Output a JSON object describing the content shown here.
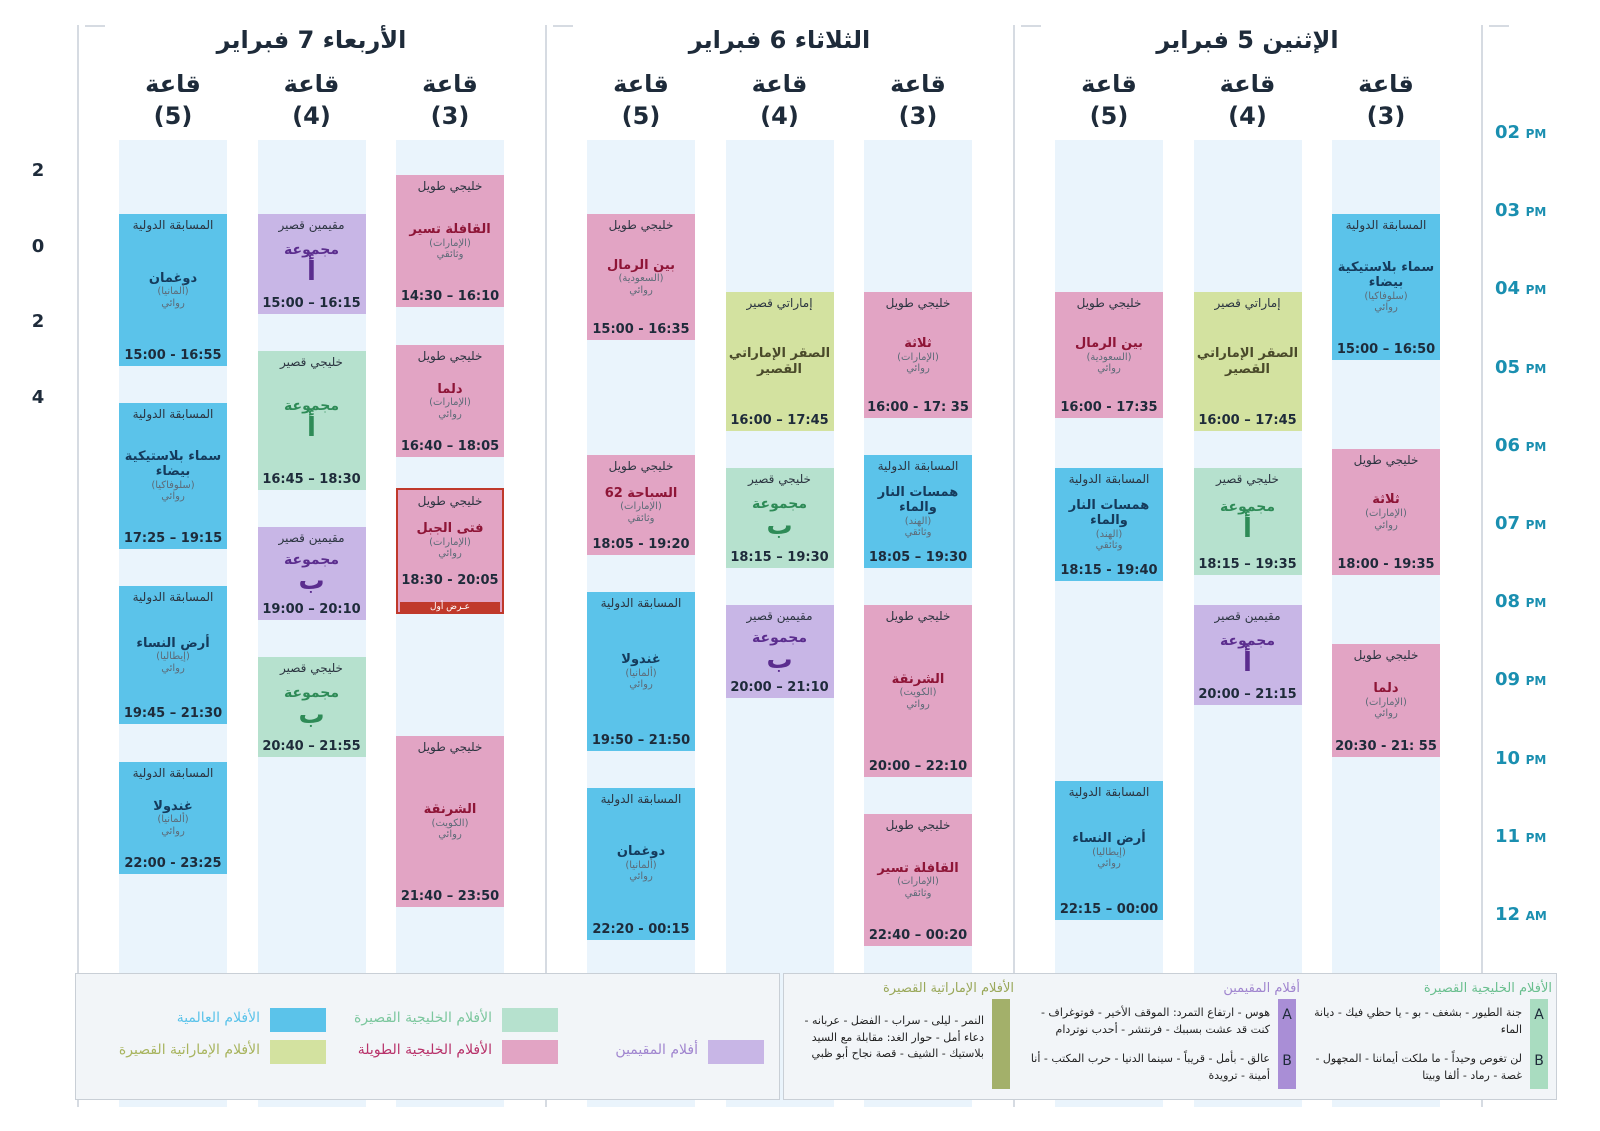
{
  "side_numbers": [
    "2",
    "0",
    "2",
    "4"
  ],
  "time_labels": [
    {
      "hour": "02",
      "period": "PM"
    },
    {
      "hour": "03",
      "period": "PM"
    },
    {
      "hour": "04",
      "period": "PM"
    },
    {
      "hour": "05",
      "period": "PM"
    },
    {
      "hour": "06",
      "period": "PM"
    },
    {
      "hour": "07",
      "period": "PM"
    },
    {
      "hour": "08",
      "period": "PM"
    },
    {
      "hour": "09",
      "period": "PM"
    },
    {
      "hour": "10",
      "period": "PM"
    },
    {
      "hour": "11",
      "period": "PM"
    },
    {
      "hour": "12",
      "period": "AM"
    }
  ],
  "days": [
    {
      "title": "الإثنين 5 فبراير",
      "rooms": [
        {
          "name": "قاعة",
          "number": "(3)",
          "events": [
            {
              "category": "المسابقة الدولية",
              "title": "سماء بلاستيكية بيضاء",
              "country": "(سلوفاكيا)",
              "genre": "روائي",
              "time": "15:00 – 16:50",
              "color": "#5bc3ea",
              "title_color": "#153b5c"
            },
            {
              "category": "خليجي طويل",
              "title": "ثلاثة",
              "country": "(الإمارات)",
              "genre": "روائي",
              "time": "18:00 - 19:35",
              "color": "#e2a4c4",
              "title_color": "#8e1537"
            },
            {
              "category": "خليجي طويل",
              "title": "دلما",
              "country": "(الإمارات)",
              "genre": "روائي",
              "time": "20:30 - 21: 55",
              "color": "#e2a4c4",
              "title_color": "#8e1537"
            }
          ]
        },
        {
          "name": "قاعة",
          "number": "(4)",
          "events": [
            {
              "category": "إماراتي قصير",
              "title": "الصقر الإماراتي القصير",
              "time": "16:00 – 17:45",
              "color": "#d3e2a0",
              "title_color": "#4a4a2a"
            },
            {
              "category": "خليجي قصير",
              "title": "مجموعة",
              "group": "أ",
              "time": "18:15 – 19:35",
              "color": "#b6e1ce",
              "title_color": "#2e8b57"
            },
            {
              "category": "مقيمين قصير",
              "title": "مجموعة",
              "group": "أ",
              "time": "20:00 – 21:15",
              "color": "#c8b6e6",
              "title_color": "#5b2d8e"
            }
          ]
        },
        {
          "name": "قاعة",
          "number": "(5)",
          "events": [
            {
              "category": "خليجي طويل",
              "title": "بين الرمال",
              "country": "(السعودية)",
              "genre": "روائي",
              "time": "16:00 - 17:35",
              "color": "#e2a4c4",
              "title_color": "#8e1537"
            },
            {
              "category": "المسابقة الدولية",
              "title": "همسات النار والماء",
              "country": "(الهند)",
              "genre": "وثائقي",
              "time": "18:15 - 19:40",
              "color": "#5bc3ea",
              "title_color": "#153b5c"
            },
            {
              "category": "المسابقة الدولية",
              "title": "أرض النساء",
              "country": "(إيطاليا)",
              "genre": "روائي",
              "time": "22:15 – 00:00",
              "color": "#5bc3ea",
              "title_color": "#153b5c"
            }
          ]
        }
      ]
    },
    {
      "title": "الثلاثاء 6 فبراير",
      "rooms": [
        {
          "name": "قاعة",
          "number": "(3)",
          "events": [
            {
              "category": "خليجي طويل",
              "title": "ثلاثة",
              "country": "(الإمارات)",
              "genre": "روائي",
              "time": "16:00 - 17: 35",
              "color": "#e2a4c4",
              "title_color": "#8e1537"
            },
            {
              "category": "المسابقة الدولية",
              "title": "همسات النار والماء",
              "country": "(الهند)",
              "genre": "وثائقي",
              "time": "18:05 – 19:30",
              "color": "#5bc3ea",
              "title_color": "#153b5c"
            },
            {
              "category": "خليجي طويل",
              "title": "الشرنقة",
              "country": "(الكويت)",
              "genre": "روائي",
              "time": "20:00 – 22:10",
              "color": "#e2a4c4",
              "title_color": "#8e1537"
            },
            {
              "category": "خليجي طويل",
              "title": "القافلة تسير",
              "country": "(الإمارات)",
              "genre": "وثائقي",
              "time": "22:40 – 00:20",
              "color": "#e2a4c4",
              "title_color": "#8e1537"
            }
          ]
        },
        {
          "name": "قاعة",
          "number": "(4)",
          "events": [
            {
              "category": "إماراتي قصير",
              "title": "الصقر الإماراتي القصير",
              "time": "16:00 – 17:45",
              "color": "#d3e2a0",
              "title_color": "#4a4a2a"
            },
            {
              "category": "خليجي قصير",
              "title": "مجموعة",
              "group": "ب",
              "time": "18:15 – 19:30",
              "color": "#b6e1ce",
              "title_color": "#2e8b57"
            },
            {
              "category": "مقيمين قصير",
              "title": "مجموعة",
              "group": "ب",
              "time": "20:00 – 21:10",
              "color": "#c8b6e6",
              "title_color": "#5b2d8e"
            }
          ]
        },
        {
          "name": "قاعة",
          "number": "(5)",
          "events": [
            {
              "category": "خليجي طويل",
              "title": "بين الرمال",
              "country": "(السعودية)",
              "genre": "روائي",
              "time": "15:00 - 16:35",
              "color": "#e2a4c4",
              "title_color": "#8e1537"
            },
            {
              "category": "خليجي طويل",
              "title": "السباحة 62",
              "country": "(الإمارات)",
              "genre": "وثائقي",
              "time": "18:05 - 19:20",
              "color": "#e2a4c4",
              "title_color": "#8e1537"
            },
            {
              "category": "المسابقة الدولية",
              "title": "غندولا",
              "country": "(ألمانيا)",
              "genre": "روائي",
              "time": "19:50 – 21:50",
              "color": "#5bc3ea",
              "title_color": "#153b5c"
            },
            {
              "category": "المسابقة الدولية",
              "title": "دوغمان",
              "country": "(ألمانيا)",
              "genre": "روائي",
              "time": "22:20 - 00:15",
              "color": "#5bc3ea",
              "title_color": "#153b5c"
            }
          ]
        }
      ]
    },
    {
      "title": "الأربعاء 7 فبراير",
      "rooms": [
        {
          "name": "قاعة",
          "number": "(3)",
          "events": [
            {
              "category": "خليجي طويل",
              "title": "القافلة تسير",
              "country": "(الإمارات)",
              "genre": "وثائقي",
              "time": "14:30 – 16:10",
              "color": "#e2a4c4",
              "title_color": "#8e1537"
            },
            {
              "category": "خليجي طويل",
              "title": "دلما",
              "country": "(الإمارات)",
              "genre": "روائي",
              "time": "16:40 – 18:05",
              "color": "#e2a4c4",
              "title_color": "#8e1537"
            },
            {
              "category": "خليجي طويل",
              "title": "فتى الجبل",
              "country": "(الإمارات)",
              "genre": "روائي",
              "time": "18:30 - 20:05",
              "note": "عـرض أول",
              "color": "#e2a4c4",
              "title_color": "#8e1537"
            },
            {
              "category": "خليجي طويل",
              "title": "الشرنقة",
              "country": "(الكويت)",
              "genre": "روائي",
              "time": "21:40 – 23:50",
              "color": "#e2a4c4",
              "title_color": "#8e1537"
            }
          ]
        },
        {
          "name": "قاعة",
          "number": "(4)",
          "events": [
            {
              "category": "مقيمين قصير",
              "title": "مجموعة",
              "group": "أ",
              "time": "15:00 – 16:15",
              "color": "#c8b6e6",
              "title_color": "#5b2d8e"
            },
            {
              "category": "خليجي قصير",
              "title": "مجموعة",
              "group": "أ",
              "time": "16:45 – 18:30",
              "color": "#b6e1ce",
              "title_color": "#2e8b57"
            },
            {
              "category": "مقيمين قصير",
              "title": "مجموعة",
              "group": "ب",
              "time": "19:00 – 20:10",
              "color": "#c8b6e6",
              "title_color": "#5b2d8e"
            },
            {
              "category": "خليجي قصير",
              "title": "مجموعة",
              "group": "ب",
              "time": "20:40 – 21:55",
              "color": "#b6e1ce",
              "title_color": "#2e8b57"
            }
          ]
        },
        {
          "name": "قاعة",
          "number": "(5)",
          "events": [
            {
              "category": "المسابقة الدولية",
              "title": "دوغمان",
              "country": "(ألمانيا)",
              "genre": "روائي",
              "time": "15:00 - 16:55",
              "color": "#5bc3ea",
              "title_color": "#153b5c"
            },
            {
              "category": "المسابقة الدولية",
              "title": "سماء بلاستيكية بيضاء",
              "country": "(سلوفاكيا)",
              "genre": "روائي",
              "time": "17:25 – 19:15",
              "color": "#5bc3ea",
              "title_color": "#153b5c"
            },
            {
              "category": "المسابقة الدولية",
              "title": "أرض النساء",
              "country": "(إيطاليا)",
              "genre": "روائي",
              "time": "19:45 – 21:30",
              "color": "#5bc3ea",
              "title_color": "#153b5c"
            },
            {
              "category": "المسابقة الدولية",
              "title": "غندولا",
              "country": "(ألمانيا)",
              "genre": "روائي",
              "time": "22:00 - 23:25",
              "color": "#5bc3ea",
              "title_color": "#153b5c"
            }
          ]
        }
      ]
    }
  ],
  "legend": [
    {
      "label": "الأفلام العالمية",
      "color": "#5bc3ea",
      "text_color": "#5bc3ea"
    },
    {
      "label": "الأفلام الخليجية القصيرة",
      "color": "#b6e1ce",
      "text_color": "#7cc79e"
    },
    {
      "label": "الأفلام الإماراتية القصيرة",
      "color": "#d3e2a0",
      "text_color": "#a8b45e"
    },
    {
      "label": "الأفلام الخليجية الطويلة",
      "color": "#e2a4c4",
      "text_color": "#b8326a"
    },
    {
      "label": "أفلام المقيمين",
      "color": "#c8b6e6",
      "text_color": "#a085cf"
    }
  ],
  "programs": [
    {
      "title": "الأفلام الخليجية القصيرة",
      "color": "#a9dcc0",
      "text_color": "#6abf8f",
      "groups": [
        {
          "letter": "A",
          "films": "جنة الطيور - بشغف - بو - يا حظي فيك - ديانة الماء"
        },
        {
          "letter": "B",
          "films": "لن تغوص وحيداً - ما ملكت أيماننا - المجهول - غصة - رماد - ألفا وبيتا"
        }
      ]
    },
    {
      "title": "أفلام المقيمين",
      "color": "#a98ed6",
      "text_color": "#a085cf",
      "groups": [
        {
          "letter": "A",
          "films": "هوس - ارتفاع التمرد: الموقف الأخير - فوتوغراف - كنت قد عشت بسببك - فرنتشر - أحدب نوتردام"
        },
        {
          "letter": "B",
          "films": "عالق - بأمل - قريباً - سينما الدنيا - حرب المكتب - أنا أمينة - ترويدة"
        }
      ]
    },
    {
      "title": "الأفلام الإماراتية القصيرة",
      "color": "#a3b06a",
      "text_color": "#9aa85a",
      "groups": [
        {
          "films": "النمر - ليلى - سراب - الفضل - عربانه - دعاء أمل - حوار الغد: مقابلة مع السيد بلاستيك - الشيف - قصة نجاح أبو ظبي"
        }
      ]
    }
  ]
}
